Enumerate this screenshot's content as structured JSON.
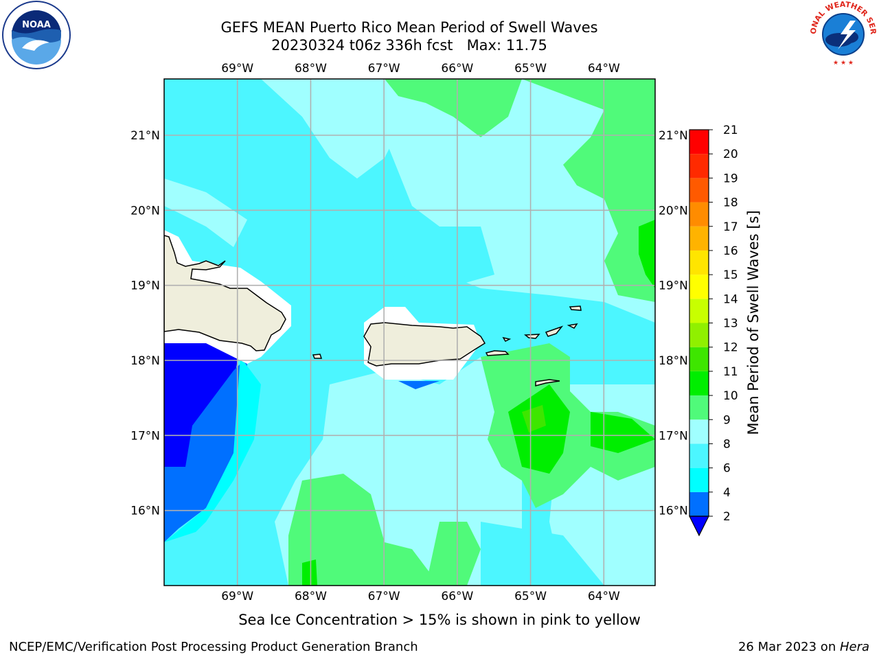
{
  "header": {
    "title_line1": "GEFS MEAN Puerto Rico Mean Period of Swell Waves",
    "title_line2": "20230324 t06z 336h fcst   Max: 11.75"
  },
  "logos": {
    "left": {
      "icon": "noaa-logo",
      "text": "NOAA"
    },
    "right": {
      "icon": "nws-logo",
      "text": "NATIONAL WEATHER SERVICE"
    }
  },
  "map": {
    "lon_labels": [
      "69°W",
      "68°W",
      "67°W",
      "66°W",
      "65°W",
      "64°W"
    ],
    "lat_labels": [
      "21°N",
      "20°N",
      "19°N",
      "18°N",
      "17°N",
      "16°N"
    ],
    "lon_range": [
      -70.0,
      -63.3
    ],
    "lat_range": [
      15.0,
      21.75
    ],
    "grid": true,
    "land_color": "#efeedc",
    "islands": [
      "Hispaniola",
      "Puerto Rico",
      "Virgin Islands"
    ]
  },
  "colorbar": {
    "label": "Mean Period of Swell Waves [s]",
    "ticks": [
      "2",
      "4",
      "6",
      "8",
      "9",
      "10",
      "11",
      "12",
      "13",
      "14",
      "15",
      "16",
      "17",
      "18",
      "19",
      "20",
      "21"
    ],
    "colors": [
      "#0000ff",
      "#0070ff",
      "#00ffff",
      "#4cf6ff",
      "#a0ffff",
      "#50fa7a",
      "#00ee00",
      "#3ee600",
      "#90f000",
      "#c8ff00",
      "#ffff00",
      "#ffe500",
      "#ffb300",
      "#ff8c00",
      "#ff5a00",
      "#ff2a00",
      "#ff0000"
    ],
    "extend": "min"
  },
  "footer": {
    "caption": "Sea Ice Concentration > 15% is shown in pink to yellow",
    "credit_left": "NCEP/EMC/Verification Post Processing Product Generation Branch",
    "credit_right_date": "26 Mar 2023 on ",
    "credit_right_host": "Hera"
  }
}
